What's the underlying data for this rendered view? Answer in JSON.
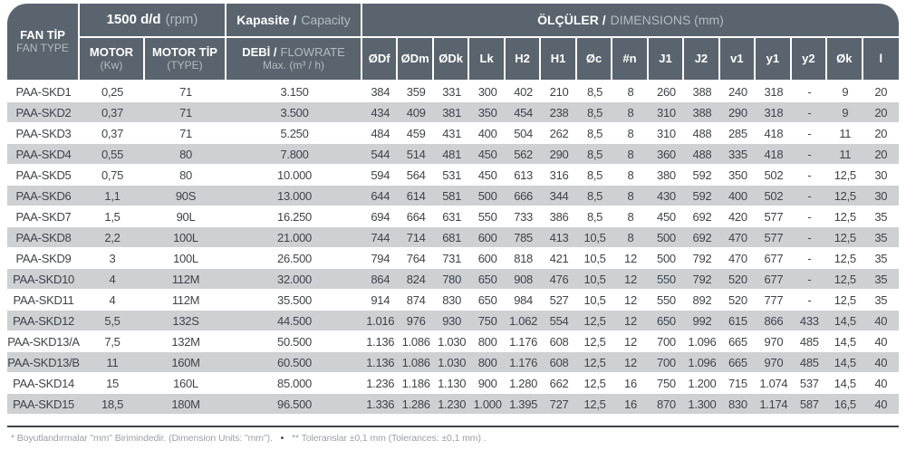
{
  "colors": {
    "header_bg": "#5a646e",
    "stripe": "#cdd1d4",
    "text": "#3f4449",
    "header_light_text": "#b4bac0",
    "rule": "#3d4349"
  },
  "header": {
    "fan_tip_line1": "FAN TİP",
    "fan_tip_line2": "FAN TYPE",
    "rpm_bold": "1500 d/d",
    "rpm_light": "(rpm)",
    "motor_bold": "MOTOR",
    "motor_light": "(Kw)",
    "motor_tip_bold": "MOTOR TİP",
    "motor_tip_light": "(TYPE)",
    "capacity_bold": "Kapasite /",
    "capacity_light": "Capacity",
    "debi_bold": "DEBİ /",
    "debi_light": "FLOWRATE",
    "debi_line2": "Max. (m³ / h)",
    "dimensions_bold": "ÖLÇÜLER /",
    "dimensions_light": "DIMENSIONS (mm)",
    "dim_columns": [
      "ØDf",
      "ØDm",
      "ØDk",
      "Lk",
      "H2",
      "H1",
      "Øc",
      "#n",
      "J1",
      "J2",
      "v1",
      "y1",
      "y2",
      "Øk",
      "l"
    ]
  },
  "rows": [
    {
      "fan_type": "PAA-SKD1",
      "motor_kw": "0,25",
      "motor_type": "71",
      "flowrate": "3.150",
      "dims": [
        "384",
        "359",
        "331",
        "300",
        "402",
        "210",
        "8,5",
        "8",
        "260",
        "388",
        "240",
        "318",
        "-",
        "9",
        "20"
      ]
    },
    {
      "fan_type": "PAA-SKD2",
      "motor_kw": "0,37",
      "motor_type": "71",
      "flowrate": "3.500",
      "dims": [
        "434",
        "409",
        "381",
        "350",
        "454",
        "238",
        "8,5",
        "8",
        "310",
        "388",
        "290",
        "318",
        "-",
        "9",
        "20"
      ]
    },
    {
      "fan_type": "PAA-SKD3",
      "motor_kw": "0,37",
      "motor_type": "71",
      "flowrate": "5.250",
      "dims": [
        "484",
        "459",
        "431",
        "400",
        "504",
        "262",
        "8,5",
        "8",
        "310",
        "488",
        "285",
        "418",
        "-",
        "11",
        "20"
      ]
    },
    {
      "fan_type": "PAA-SKD4",
      "motor_kw": "0,55",
      "motor_type": "80",
      "flowrate": "7.800",
      "dims": [
        "544",
        "514",
        "481",
        "450",
        "562",
        "290",
        "8,5",
        "8",
        "360",
        "488",
        "335",
        "418",
        "-",
        "11",
        "20"
      ]
    },
    {
      "fan_type": "PAA-SKD5",
      "motor_kw": "0,75",
      "motor_type": "80",
      "flowrate": "10.000",
      "dims": [
        "594",
        "564",
        "531",
        "450",
        "613",
        "316",
        "8,5",
        "8",
        "380",
        "592",
        "350",
        "502",
        "-",
        "12,5",
        "30"
      ]
    },
    {
      "fan_type": "PAA-SKD6",
      "motor_kw": "1,1",
      "motor_type": "90S",
      "flowrate": "13.000",
      "dims": [
        "644",
        "614",
        "581",
        "500",
        "666",
        "344",
        "8,5",
        "8",
        "430",
        "592",
        "400",
        "502",
        "-",
        "12,5",
        "30"
      ]
    },
    {
      "fan_type": "PAA-SKD7",
      "motor_kw": "1,5",
      "motor_type": "90L",
      "flowrate": "16.250",
      "dims": [
        "694",
        "664",
        "631",
        "550",
        "733",
        "386",
        "8,5",
        "8",
        "450",
        "692",
        "420",
        "577",
        "-",
        "12,5",
        "35"
      ]
    },
    {
      "fan_type": "PAA-SKD8",
      "motor_kw": "2,2",
      "motor_type": "100L",
      "flowrate": "21.000",
      "dims": [
        "744",
        "714",
        "681",
        "600",
        "785",
        "413",
        "10,5",
        "8",
        "500",
        "692",
        "470",
        "577",
        "-",
        "12,5",
        "35"
      ]
    },
    {
      "fan_type": "PAA-SKD9",
      "motor_kw": "3",
      "motor_type": "100L",
      "flowrate": "26.500",
      "dims": [
        "794",
        "764",
        "731",
        "600",
        "818",
        "421",
        "10,5",
        "12",
        "500",
        "792",
        "470",
        "677",
        "-",
        "12,5",
        "35"
      ]
    },
    {
      "fan_type": "PAA-SKD10",
      "motor_kw": "4",
      "motor_type": "112M",
      "flowrate": "32.000",
      "dims": [
        "864",
        "824",
        "780",
        "650",
        "908",
        "476",
        "10,5",
        "12",
        "550",
        "792",
        "520",
        "677",
        "-",
        "12,5",
        "35"
      ]
    },
    {
      "fan_type": "PAA-SKD11",
      "motor_kw": "4",
      "motor_type": "112M",
      "flowrate": "35.500",
      "dims": [
        "914",
        "874",
        "830",
        "650",
        "984",
        "527",
        "10,5",
        "12",
        "550",
        "892",
        "520",
        "777",
        "-",
        "12,5",
        "35"
      ]
    },
    {
      "fan_type": "PAA-SKD12",
      "motor_kw": "5,5",
      "motor_type": "132S",
      "flowrate": "44.500",
      "dims": [
        "1.016",
        "976",
        "930",
        "750",
        "1.062",
        "554",
        "12,5",
        "12",
        "650",
        "992",
        "615",
        "866",
        "433",
        "14,5",
        "40"
      ]
    },
    {
      "fan_type": "PAA-SKD13/A",
      "motor_kw": "7,5",
      "motor_type": "132M",
      "flowrate": "50.500",
      "dims": [
        "1.136",
        "1.086",
        "1.030",
        "800",
        "1.176",
        "608",
        "12,5",
        "12",
        "700",
        "1.096",
        "665",
        "970",
        "485",
        "14,5",
        "40"
      ]
    },
    {
      "fan_type": "PAA-SKD13/B",
      "motor_kw": "11",
      "motor_type": "160M",
      "flowrate": "60.500",
      "dims": [
        "1.136",
        "1.086",
        "1.030",
        "800",
        "1.176",
        "608",
        "12,5",
        "12",
        "700",
        "1.096",
        "665",
        "970",
        "485",
        "14,5",
        "40"
      ]
    },
    {
      "fan_type": "PAA-SKD14",
      "motor_kw": "15",
      "motor_type": "160L",
      "flowrate": "85.000",
      "dims": [
        "1.236",
        "1.186",
        "1.130",
        "900",
        "1.280",
        "662",
        "12,5",
        "16",
        "750",
        "1.200",
        "715",
        "1.074",
        "537",
        "14,5",
        "40"
      ]
    },
    {
      "fan_type": "PAA-SKD15",
      "motor_kw": "18,5",
      "motor_type": "180M",
      "flowrate": "96.500",
      "dims": [
        "1.336",
        "1.286",
        "1.230",
        "1.000",
        "1.395",
        "727",
        "12,5",
        "16",
        "870",
        "1.300",
        "830",
        "1.174",
        "587",
        "16,5",
        "40"
      ]
    }
  ],
  "footer": {
    "note1": "* Boyutlandırmalar \"mm\" Birimindedir. (Dimension Units: \"mm\").",
    "bullet": "•",
    "note2": "** Toleranslar ±0,1 mm (Tolerances: ±0,1 mm) ."
  }
}
